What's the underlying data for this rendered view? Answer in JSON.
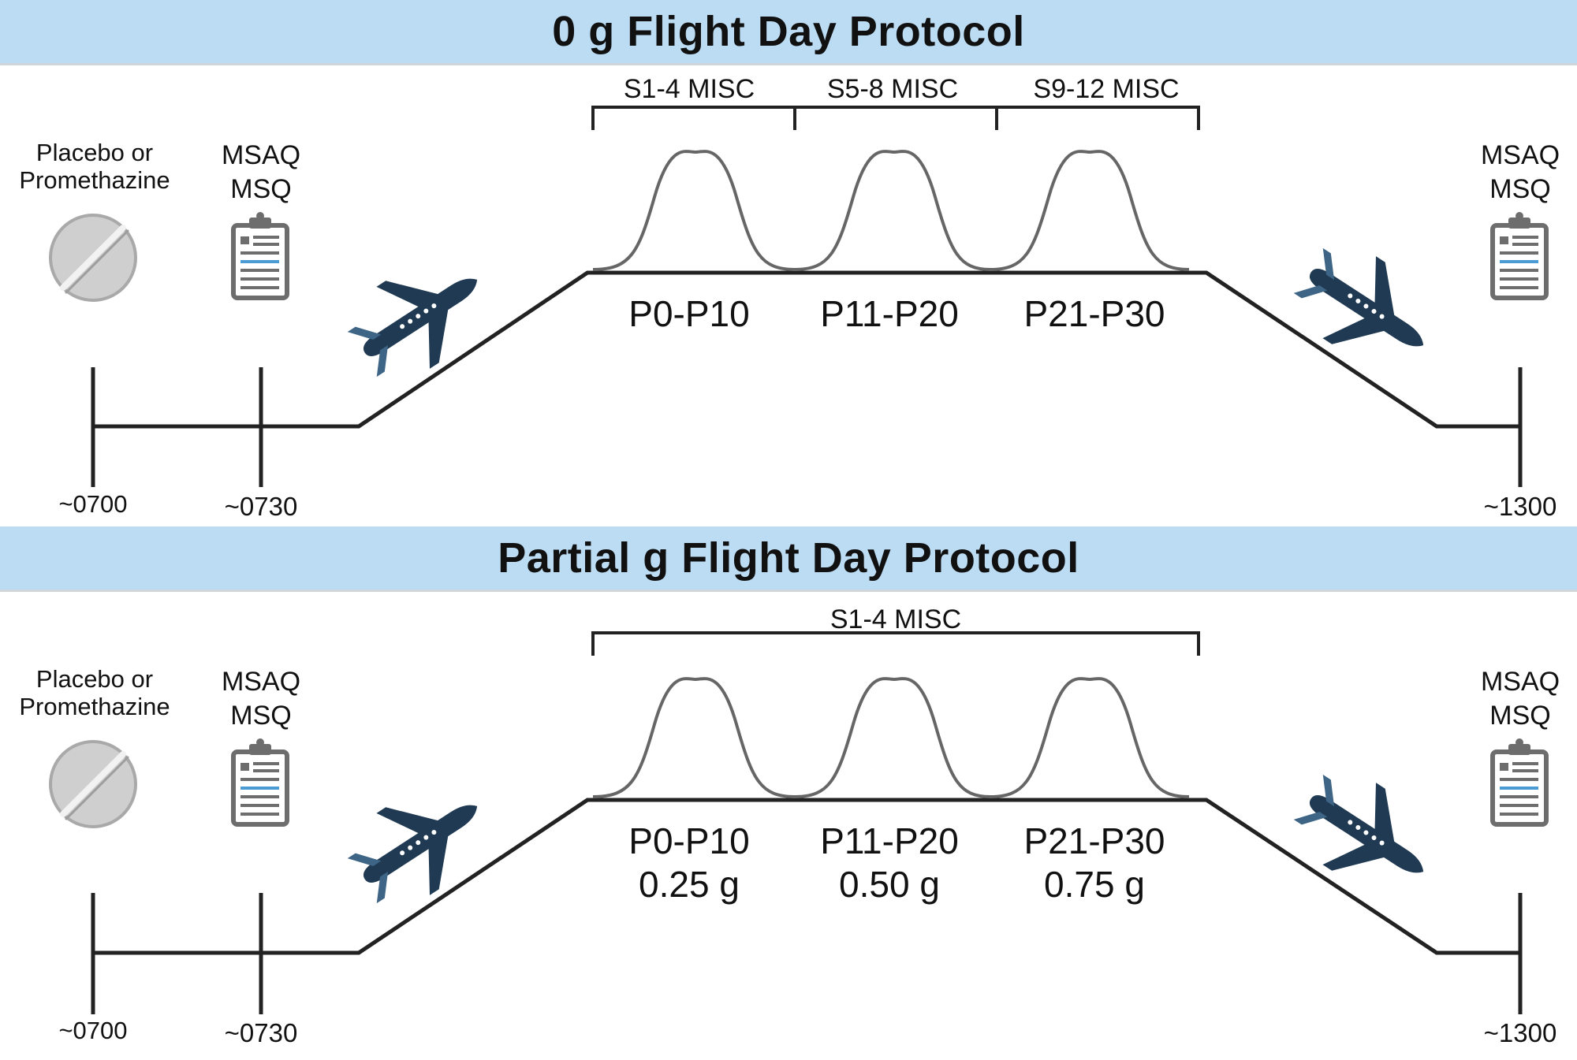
{
  "colors": {
    "banner": "#bcdcf3",
    "line": "#222222",
    "parabola": "#666666",
    "plane": "#1f3a52",
    "pill": "#c8c8c8",
    "clipboard": "#6d6d6d",
    "clipboard_accent": "#4a9ad4"
  },
  "icons": [
    "pill-icon",
    "clipboard-icon",
    "airplane-takeoff-icon",
    "airplane-landing-icon"
  ],
  "panels": [
    {
      "title": "0 g Flight Day Protocol",
      "pill_label_line1": "Placebo or",
      "pill_label_line2": "Promethazine",
      "survey_label_line1": "MSAQ",
      "survey_label_line2": "MSQ",
      "end_survey_line1": "MSAQ",
      "end_survey_line2": "MSQ",
      "times": [
        "~0700",
        "~0730",
        "~1300"
      ],
      "brackets": [
        "S1-4 MISC",
        "S5-8 MISC",
        "S9-12 MISC"
      ],
      "parabola_sets": [
        {
          "label": "P0-P10",
          "g": ""
        },
        {
          "label": "P11-P20",
          "g": ""
        },
        {
          "label": "P21-P30",
          "g": ""
        }
      ]
    },
    {
      "title": "Partial g Flight Day Protocol",
      "pill_label_line1": "Placebo or",
      "pill_label_line2": "Promethazine",
      "survey_label_line1": "MSAQ",
      "survey_label_line2": "MSQ",
      "end_survey_line1": "MSAQ",
      "end_survey_line2": "MSQ",
      "times": [
        "~0700",
        "~0730",
        "~1300"
      ],
      "brackets": [
        "S1-4 MISC"
      ],
      "parabola_sets": [
        {
          "label": "P0-P10",
          "g": "0.25 g"
        },
        {
          "label": "P11-P20",
          "g": "0.50 g"
        },
        {
          "label": "P21-P30",
          "g": "0.75 g"
        }
      ]
    }
  ]
}
